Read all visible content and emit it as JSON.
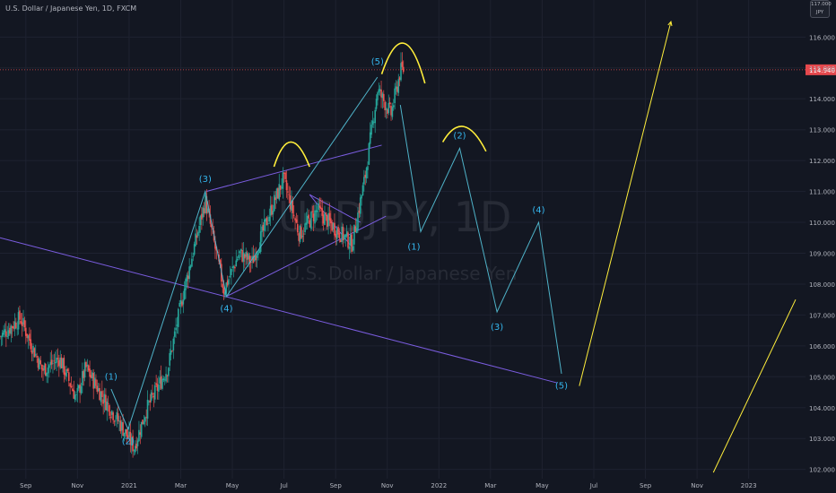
{
  "header": {
    "symbol_line": "U.S. Dollar / Japanese Yen, 1D, FXCM"
  },
  "currency_badge": {
    "top": "117.000",
    "bottom": "JPY"
  },
  "colors": {
    "background": "#131722",
    "grid": "#1e2230",
    "up_candle": "#26a69a",
    "down_candle": "#ef5350",
    "wave_line": "#4fb3c9",
    "wave_label": "#35b7ef",
    "trend_line": "#7b5de0",
    "arc": "#ffee3b",
    "price_line": "#e04848",
    "price_badge": "#e5484d",
    "axis_text": "#b2b5be"
  },
  "watermark": {
    "symbol": "USDJPY, 1D",
    "name": "U.S. Dollar / Japanese Yen"
  },
  "chart_data": {
    "type": "candlestick",
    "x_axis": {
      "ticks": [
        "Sep",
        "Nov",
        "2021",
        "Mar",
        "May",
        "Jul",
        "Sep",
        "Nov",
        "2022",
        "Mar",
        "May",
        "Jul",
        "Sep",
        "Nov",
        "2023"
      ],
      "start": "2020-08-01",
      "range_months": 31.2
    },
    "y_axis": {
      "ylim": [
        101.7,
        117.2
      ],
      "ticks": [
        102.0,
        103.0,
        104.0,
        105.0,
        106.0,
        107.0,
        108.0,
        109.0,
        110.0,
        111.0,
        112.0,
        113.0,
        114.0,
        115.0,
        116.0
      ],
      "tick_labels": [
        "102.000",
        "103.000",
        "104.000",
        "105.000",
        "106.000",
        "107.000",
        "108.000",
        "109.000",
        "110.000",
        "111.000",
        "112.000",
        "113.000",
        "114.000",
        "115.000",
        "116.000"
      ]
    },
    "last_price": {
      "value": 114.94,
      "label": "114.940"
    },
    "price_path": [
      [
        "2020-08-01",
        106.3
      ],
      [
        "2020-08-25",
        106.9
      ],
      [
        "2020-09-20",
        105.2
      ],
      [
        "2020-10-10",
        105.6
      ],
      [
        "2020-10-30",
        104.3
      ],
      [
        "2020-11-10",
        105.3
      ],
      [
        "2020-12-01",
        104.3
      ],
      [
        "2020-12-20",
        103.5
      ],
      [
        "2021-01-06",
        102.7
      ],
      [
        "2021-01-20",
        103.9
      ],
      [
        "2021-02-15",
        105.3
      ],
      [
        "2021-03-05",
        107.7
      ],
      [
        "2021-03-31",
        110.7
      ],
      [
        "2021-04-22",
        107.8
      ],
      [
        "2021-05-10",
        109.0
      ],
      [
        "2021-05-25",
        108.7
      ],
      [
        "2021-06-15",
        110.3
      ],
      [
        "2021-07-01",
        111.4
      ],
      [
        "2021-07-20",
        109.6
      ],
      [
        "2021-08-10",
        110.4
      ],
      [
        "2021-08-31",
        109.8
      ],
      [
        "2021-09-20",
        109.3
      ],
      [
        "2021-10-05",
        111.4
      ],
      [
        "2021-10-20",
        114.3
      ],
      [
        "2021-11-05",
        113.5
      ],
      [
        "2021-11-16",
        114.9
      ],
      [
        "2021-11-20",
        114.94
      ]
    ],
    "elliott_waves": [
      {
        "name": "completed",
        "points": [
          [
            "2020-12-10",
            104.6
          ],
          [
            "2020-12-30",
            103.3
          ],
          [
            "2021-03-31",
            111.0
          ],
          [
            "2021-04-25",
            107.6
          ],
          [
            "2021-10-20",
            114.7
          ]
        ],
        "labels": [
          {
            "text": "(1)",
            "date": "2020-12-10",
            "price": 105.0
          },
          {
            "text": "(2)",
            "date": "2020-12-30",
            "price": 102.9
          },
          {
            "text": "(3)",
            "date": "2021-03-31",
            "price": 111.4
          },
          {
            "text": "(4)",
            "date": "2021-04-25",
            "price": 107.2
          },
          {
            "text": "(5)",
            "date": "2021-10-20",
            "price": 115.2
          }
        ]
      },
      {
        "name": "projected",
        "points": [
          [
            "2021-11-16",
            113.8
          ],
          [
            "2021-12-10",
            109.7
          ],
          [
            "2022-01-25",
            112.4
          ],
          [
            "2022-03-10",
            107.1
          ],
          [
            "2022-04-28",
            110.0
          ],
          [
            "2022-05-25",
            105.1
          ]
        ],
        "labels": [
          {
            "text": "(1)",
            "date": "2021-12-02",
            "price": 109.2
          },
          {
            "text": "(2)",
            "date": "2022-01-25",
            "price": 112.8
          },
          {
            "text": "(3)",
            "date": "2022-03-10",
            "price": 106.6
          },
          {
            "text": "(4)",
            "date": "2022-04-28",
            "price": 110.4
          },
          {
            "text": "(5)",
            "date": "2022-05-25",
            "price": 104.7
          }
        ]
      }
    ],
    "trend_lines": [
      {
        "from": [
          "2020-08-01",
          109.5
        ],
        "to": [
          "2022-05-20",
          104.8
        ]
      },
      {
        "from": [
          "2021-04-01",
          111.0
        ],
        "to": [
          "2021-10-25",
          112.5
        ]
      },
      {
        "from": [
          "2021-04-25",
          107.6
        ],
        "to": [
          "2021-10-30",
          110.2
        ]
      },
      {
        "from": [
          "2021-08-01",
          110.9
        ],
        "to": [
          "2021-09-20",
          109.2
        ]
      },
      {
        "from": [
          "2021-08-01",
          110.9
        ],
        "to": [
          "2021-09-30",
          110.0
        ]
      }
    ],
    "projection_lines": [
      {
        "from": [
          "2022-06-15",
          104.7
        ],
        "to": [
          "2022-10-01",
          116.5
        ]
      },
      {
        "from": [
          "2022-11-20",
          101.9
        ],
        "to": [
          "2023-02-25",
          107.5
        ]
      }
    ],
    "arcs": [
      {
        "from": [
          "2021-06-20",
          111.8
        ],
        "peak": [
          "2021-07-10",
          112.6
        ],
        "to": [
          "2021-08-01",
          111.8
        ]
      },
      {
        "from": [
          "2021-10-25",
          114.8
        ],
        "peak": [
          "2021-11-20",
          115.8
        ],
        "to": [
          "2021-12-15",
          114.5
        ]
      },
      {
        "from": [
          "2022-01-05",
          112.6
        ],
        "peak": [
          "2022-01-30",
          113.1
        ],
        "to": [
          "2022-02-25",
          112.3
        ]
      }
    ]
  }
}
